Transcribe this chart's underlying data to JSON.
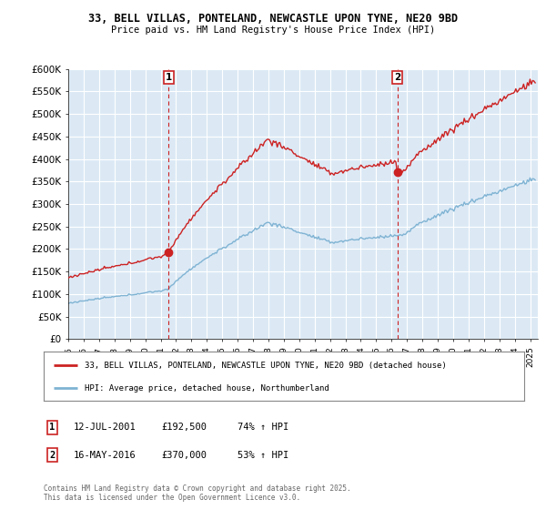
{
  "title": "33, BELL VILLAS, PONTELAND, NEWCASTLE UPON TYNE, NE20 9BD",
  "subtitle": "Price paid vs. HM Land Registry's House Price Index (HPI)",
  "ylim": [
    0,
    600000
  ],
  "yticks": [
    0,
    50000,
    100000,
    150000,
    200000,
    250000,
    300000,
    350000,
    400000,
    450000,
    500000,
    550000,
    600000
  ],
  "ytick_labels": [
    "£0",
    "£50K",
    "£100K",
    "£150K",
    "£200K",
    "£250K",
    "£300K",
    "£350K",
    "£400K",
    "£450K",
    "£500K",
    "£550K",
    "£600K"
  ],
  "hpi_color": "#7fb3d3",
  "price_color": "#cc2222",
  "vline_color": "#cc2222",
  "chart_bg_color": "#dce9f5",
  "background_color": "#ffffff",
  "grid_color": "#ffffff",
  "sale1_date_num": 2001.53,
  "sale1_price": 192500,
  "sale2_date_num": 2016.37,
  "sale2_price": 370000,
  "legend_label1": "33, BELL VILLAS, PONTELAND, NEWCASTLE UPON TYNE, NE20 9BD (detached house)",
  "legend_label2": "HPI: Average price, detached house, Northumberland",
  "info1_date": "12-JUL-2001",
  "info1_price": "£192,500",
  "info1_hpi": "74% ↑ HPI",
  "info2_date": "16-MAY-2016",
  "info2_price": "£370,000",
  "info2_hpi": "53% ↑ HPI",
  "copyright": "Contains HM Land Registry data © Crown copyright and database right 2025.\nThis data is licensed under the Open Government Licence v3.0."
}
